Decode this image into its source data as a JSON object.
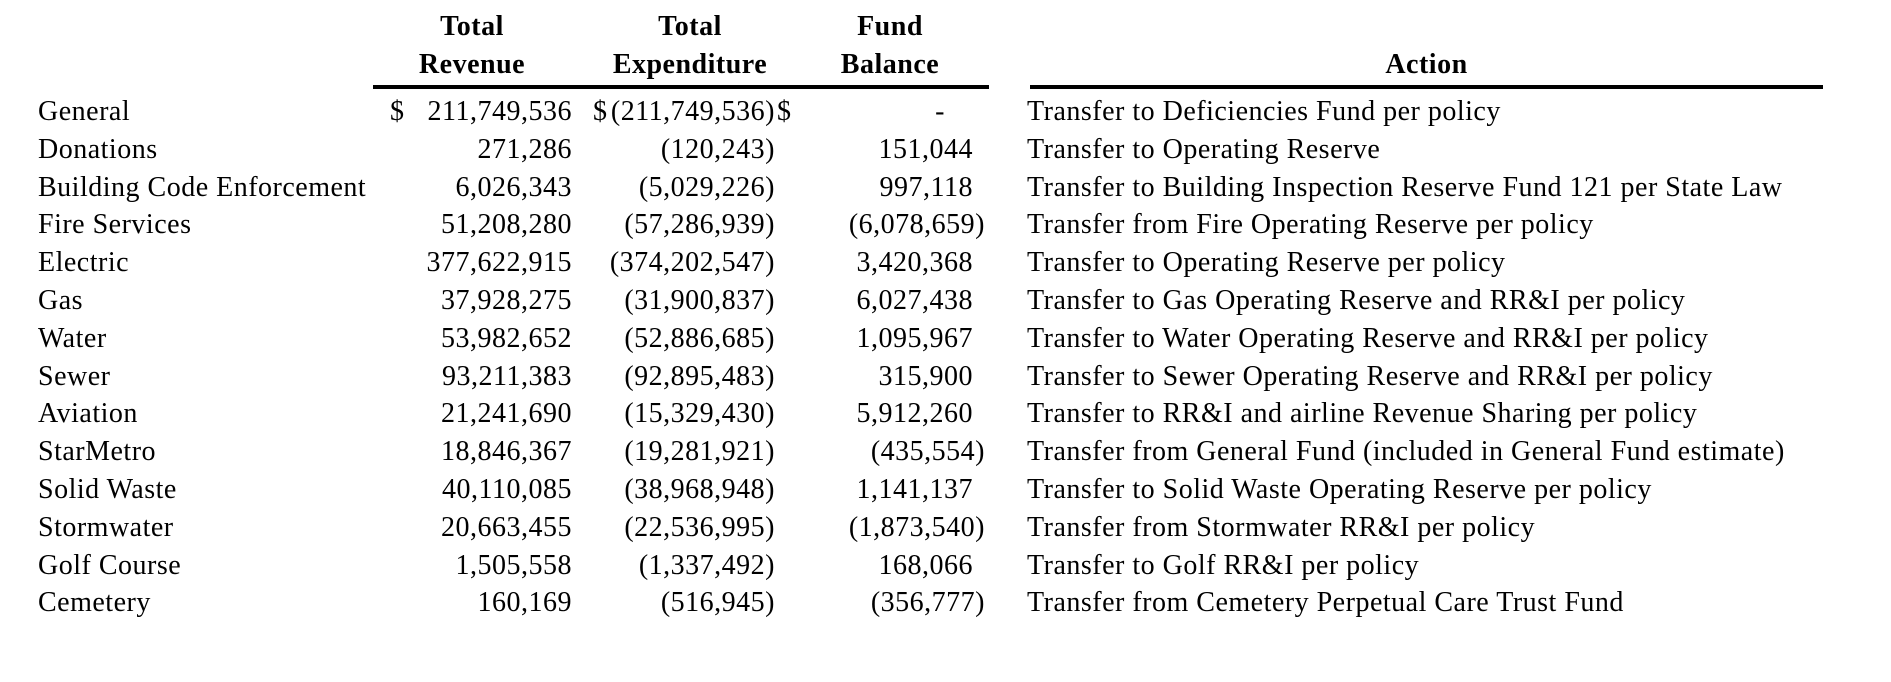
{
  "colors": {
    "text": "#000000",
    "background": "#ffffff",
    "rule": "#000000"
  },
  "table": {
    "currency_symbol": "$",
    "columns": {
      "revenue": {
        "line1": "Total",
        "line2": "Revenue"
      },
      "expenditure": {
        "line1": "Total",
        "line2": "Expenditure"
      },
      "balance": {
        "line1": "Fund",
        "line2": "Balance"
      },
      "action": {
        "label": "Action"
      }
    },
    "rows": [
      {
        "name": "General",
        "revenue": "211,749,536",
        "expenditure": "(211,749,536)",
        "balance": "-",
        "show_currency": true,
        "action": "Transfer to Deficiencies Fund per policy"
      },
      {
        "name": "Donations",
        "revenue": "271,286",
        "expenditure": "(120,243)",
        "balance": "151,044",
        "show_currency": false,
        "action": "Transfer to Operating Reserve"
      },
      {
        "name": "Building Code Enforcement",
        "revenue": "6,026,343",
        "expenditure": "(5,029,226)",
        "balance": "997,118",
        "show_currency": false,
        "action": "Transfer to Building Inspection Reserve Fund 121 per State Law"
      },
      {
        "name": "Fire Services",
        "revenue": "51,208,280",
        "expenditure": "(57,286,939)",
        "balance": "(6,078,659)",
        "show_currency": false,
        "action": "Transfer from Fire Operating Reserve per policy"
      },
      {
        "name": "Electric",
        "revenue": "377,622,915",
        "expenditure": "(374,202,547)",
        "balance": "3,420,368",
        "show_currency": false,
        "action": "Transfer to Operating Reserve per policy"
      },
      {
        "name": "Gas",
        "revenue": "37,928,275",
        "expenditure": "(31,900,837)",
        "balance": "6,027,438",
        "show_currency": false,
        "action": "Transfer to Gas Operating Reserve and RR&I per policy"
      },
      {
        "name": "Water",
        "revenue": "53,982,652",
        "expenditure": "(52,886,685)",
        "balance": "1,095,967",
        "show_currency": false,
        "action": "Transfer to Water Operating Reserve and RR&I per policy"
      },
      {
        "name": "Sewer",
        "revenue": "93,211,383",
        "expenditure": "(92,895,483)",
        "balance": "315,900",
        "show_currency": false,
        "action": "Transfer to Sewer Operating Reserve and RR&I per policy"
      },
      {
        "name": "Aviation",
        "revenue": "21,241,690",
        "expenditure": "(15,329,430)",
        "balance": "5,912,260",
        "show_currency": false,
        "action": "Transfer to RR&I and airline Revenue Sharing per policy"
      },
      {
        "name": "StarMetro",
        "revenue": "18,846,367",
        "expenditure": "(19,281,921)",
        "balance": "(435,554)",
        "show_currency": false,
        "action": "Transfer from General Fund (included in General Fund estimate)"
      },
      {
        "name": "Solid Waste",
        "revenue": "40,110,085",
        "expenditure": "(38,968,948)",
        "balance": "1,141,137",
        "show_currency": false,
        "action": "Transfer to Solid Waste Operating Reserve per policy"
      },
      {
        "name": "Stormwater",
        "revenue": "20,663,455",
        "expenditure": "(22,536,995)",
        "balance": "(1,873,540)",
        "show_currency": false,
        "action": "Transfer from Stormwater RR&I per policy"
      },
      {
        "name": "Golf Course",
        "revenue": "1,505,558",
        "expenditure": "(1,337,492)",
        "balance": "168,066",
        "show_currency": false,
        "action": "Transfer to Golf RR&I per policy"
      },
      {
        "name": "Cemetery",
        "revenue": "160,169",
        "expenditure": "(516,945)",
        "balance": "(356,777)",
        "show_currency": false,
        "action": "Transfer from Cemetery Perpetual Care Trust Fund"
      }
    ]
  }
}
